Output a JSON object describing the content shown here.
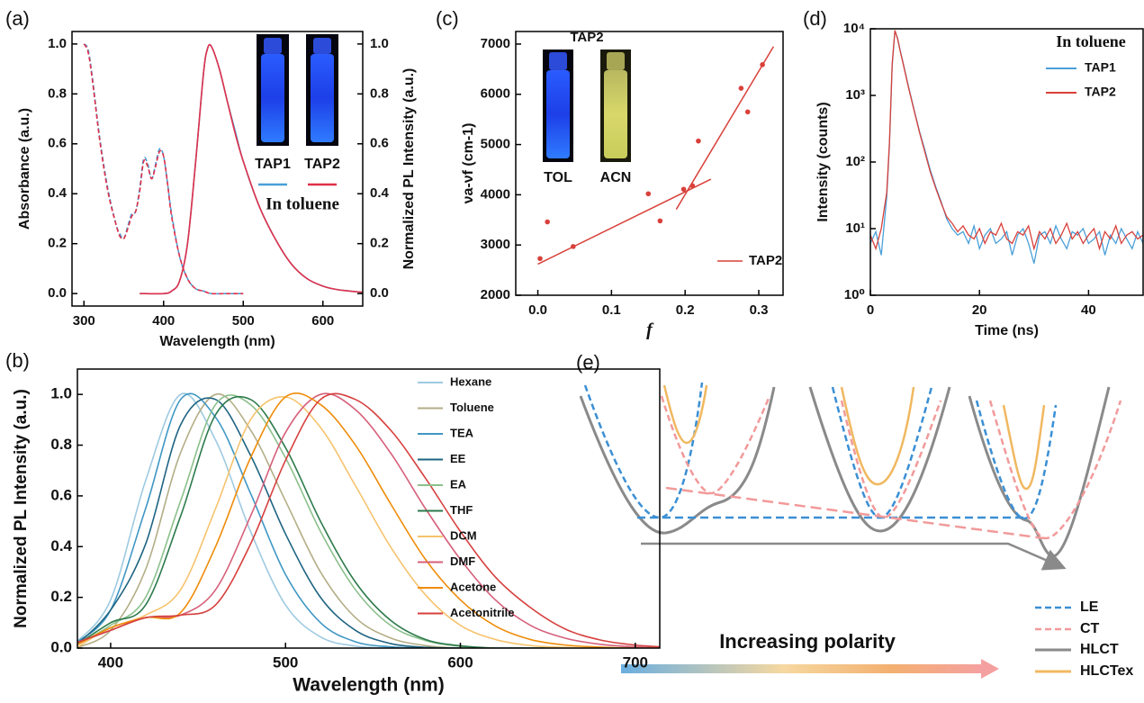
{
  "chart_data": [
    {
      "panel_label": "(a)",
      "type": "line",
      "x_label": "Wavelength (nm)",
      "y_label": "Absorbance (a.u.)",
      "y2_label": "Normalized PL Intensity (a.u.)",
      "annotation": "In toluene",
      "xlim": [
        285,
        650
      ],
      "xticks": [
        300,
        400,
        500,
        600
      ],
      "ylim": [
        -0.05,
        1.05
      ],
      "yticks": [
        {
          "value": 0,
          "label": "0.0"
        },
        0.2,
        0.4,
        0.6,
        0.8,
        {
          "value": 1,
          "label": "1.0"
        }
      ],
      "y2lim": [
        -0.05,
        1.05
      ],
      "y2ticks": [
        {
          "value": 0,
          "label": "0.0"
        },
        0.2,
        0.4,
        0.6,
        0.8,
        {
          "value": 1,
          "label": "1.0"
        }
      ],
      "x_absorbance": [
        300,
        305,
        310,
        320,
        330,
        340,
        345,
        350,
        355,
        360,
        365,
        370,
        375,
        380,
        385,
        390,
        395,
        400,
        405,
        410,
        420,
        430,
        440,
        450,
        460,
        480,
        500
      ],
      "x_pl": [
        370,
        400,
        410,
        420,
        430,
        440,
        450,
        455,
        460,
        470,
        480,
        490,
        500,
        520,
        540,
        560,
        580,
        600,
        620,
        650
      ],
      "series": [
        {
          "name": "TAP1",
          "color": "#4a9fd8",
          "absorbance": [
            1.0,
            0.98,
            0.88,
            0.62,
            0.42,
            0.28,
            0.24,
            0.22,
            0.27,
            0.32,
            0.33,
            0.42,
            0.54,
            0.52,
            0.46,
            0.52,
            0.58,
            0.55,
            0.44,
            0.32,
            0.15,
            0.06,
            0.02,
            0.01,
            0,
            0,
            0
          ],
          "pl": [
            0,
            0,
            0.01,
            0.05,
            0.2,
            0.52,
            0.88,
            0.98,
            0.99,
            0.9,
            0.77,
            0.65,
            0.53,
            0.35,
            0.22,
            0.12,
            0.06,
            0.03,
            0.015,
            0.005
          ]
        },
        {
          "name": "TAP2",
          "color": "#e0304a",
          "absorbance": [
            1.0,
            0.97,
            0.87,
            0.61,
            0.41,
            0.28,
            0.23,
            0.22,
            0.26,
            0.31,
            0.33,
            0.41,
            0.53,
            0.51,
            0.46,
            0.51,
            0.57,
            0.55,
            0.44,
            0.31,
            0.15,
            0.06,
            0.02,
            0.01,
            0,
            0,
            0
          ],
          "pl": [
            0,
            0,
            0.01,
            0.05,
            0.2,
            0.52,
            0.88,
            0.98,
            0.99,
            0.9,
            0.77,
            0.64,
            0.53,
            0.35,
            0.22,
            0.12,
            0.06,
            0.03,
            0.015,
            0.005
          ]
        }
      ]
    },
    {
      "panel_label": "(b)",
      "type": "line",
      "x_label": "Wavelength (nm)",
      "y_label": "Normalized PL Intensity (a.u.)",
      "xlim": [
        381,
        714
      ],
      "xticks": [
        400,
        500,
        600,
        700
      ],
      "ylim": [
        0,
        1.1
      ],
      "yticks": [
        {
          "value": 0,
          "label": "0.0"
        },
        0.2,
        0.4,
        0.6,
        0.8,
        {
          "value": 1,
          "label": "1.0"
        }
      ],
      "x": [
        380,
        400,
        420,
        440,
        460,
        480,
        500,
        520,
        540,
        560,
        580,
        600,
        620,
        640,
        660,
        680,
        700,
        720
      ],
      "series": [
        {
          "name": "Hexane",
          "color": "#9ecae1",
          "values": [
            0.02,
            0.19,
            0.66,
            1.0,
            0.82,
            0.46,
            0.17,
            0.044,
            0.008,
            0.001,
            0,
            0,
            0,
            0,
            0,
            0,
            0,
            0
          ]
        },
        {
          "name": "Toluene",
          "color": "#b3ae86",
          "values": [
            0,
            0.07,
            0.31,
            0.77,
            1.0,
            0.86,
            0.58,
            0.3,
            0.12,
            0.04,
            0.01,
            0,
            0,
            0,
            0,
            0,
            0,
            0
          ]
        },
        {
          "name": "TEA",
          "color": "#3f97c4",
          "values": [
            0.02,
            0.15,
            0.55,
            0.98,
            0.91,
            0.61,
            0.29,
            0.1,
            0.025,
            0.005,
            0,
            0,
            0,
            0,
            0,
            0,
            0,
            0
          ]
        },
        {
          "name": "EE",
          "color": "#1f6482",
          "values": [
            0.01,
            0.15,
            0.41,
            0.88,
            0.98,
            0.76,
            0.45,
            0.2,
            0.07,
            0.018,
            0.003,
            0,
            0,
            0,
            0,
            0,
            0,
            0
          ]
        },
        {
          "name": "EA",
          "color": "#8cc08c",
          "values": [
            0.01,
            0.09,
            0.2,
            0.58,
            0.96,
            0.96,
            0.75,
            0.46,
            0.23,
            0.09,
            0.03,
            0.007,
            0,
            0,
            0,
            0,
            0,
            0
          ]
        },
        {
          "name": "THF",
          "color": "#2d7a4c",
          "values": [
            0.01,
            0.1,
            0.17,
            0.52,
            0.92,
            0.98,
            0.79,
            0.5,
            0.26,
            0.11,
            0.034,
            0.009,
            0,
            0,
            0,
            0,
            0,
            0
          ]
        },
        {
          "name": "DCM",
          "color": "#f6c36e",
          "values": [
            0,
            0.08,
            0.13,
            0.23,
            0.55,
            0.9,
            0.99,
            0.87,
            0.64,
            0.4,
            0.21,
            0.09,
            0.034,
            0.01,
            0.003,
            0,
            0,
            0
          ]
        },
        {
          "name": "DMF",
          "color": "#d6607a",
          "values": [
            0.02,
            0.07,
            0.12,
            0.13,
            0.23,
            0.52,
            0.85,
            1.0,
            0.94,
            0.77,
            0.55,
            0.35,
            0.19,
            0.09,
            0.039,
            0.015,
            0.005,
            0
          ]
        },
        {
          "name": "Acetone",
          "color": "#ef8c0a",
          "values": [
            0.01,
            0.08,
            0.12,
            0.14,
            0.4,
            0.75,
            0.99,
            0.96,
            0.8,
            0.57,
            0.35,
            0.19,
            0.087,
            0.034,
            0.012,
            0.004,
            0,
            0
          ]
        },
        {
          "name": "Acetonitrile",
          "color": "#d6403e",
          "values": [
            0.02,
            0.07,
            0.12,
            0.13,
            0.17,
            0.41,
            0.74,
            0.98,
            0.98,
            0.86,
            0.67,
            0.46,
            0.28,
            0.16,
            0.075,
            0.032,
            0.012,
            0.003
          ]
        }
      ]
    },
    {
      "panel_label": "(c)",
      "type": "scatter",
      "x_label": "f",
      "y_label": "νa-νf (cm-1)",
      "inset_title": "TAP2",
      "inset_labels": [
        "TOL",
        "ACN"
      ],
      "xlim": [
        -0.03,
        0.333
      ],
      "xticks": [
        {
          "value": 0,
          "label": "0.0"
        },
        0.1,
        0.2,
        0.3
      ],
      "ylim": [
        2000,
        7250
      ],
      "yticks": [
        2000,
        3000,
        4000,
        5000,
        6000,
        7000
      ],
      "series": [
        {
          "name": "TAP2",
          "color": "#d9403a",
          "x": [
            0.003,
            0.013,
            0.048,
            0.15,
            0.166,
            0.198,
            0.21,
            0.218,
            0.276,
            0.285,
            0.305
          ],
          "values": [
            2730,
            3460,
            2970,
            4020,
            3480,
            4110,
            4180,
            5070,
            6120,
            5650,
            6590
          ],
          "fits": [
            {
              "x": [
                0,
                0.235
              ],
              "values": [
                2620,
                4310
              ]
            },
            {
              "x": [
                0.188,
                0.32
              ],
              "values": [
                3710,
                6950
              ]
            }
          ]
        }
      ]
    },
    {
      "panel_label": "(d)",
      "type": "line",
      "x_label": "Time (ns)",
      "y_label": "Intensity (counts)",
      "legend_title": "In toluene",
      "log_y": true,
      "xlim": [
        0,
        50
      ],
      "xticks": [
        0,
        20,
        40
      ],
      "ylim": [
        1,
        10000
      ],
      "yticks": [
        {
          "value": 1,
          "label": "10⁰"
        },
        {
          "value": 10,
          "label": "10¹"
        },
        {
          "value": 100,
          "label": "10²"
        },
        {
          "value": 1000,
          "label": "10³"
        },
        {
          "value": 10000,
          "label": "10⁴"
        }
      ],
      "x": [
        0,
        1,
        2,
        3,
        3.5,
        4,
        4.5,
        5,
        5.5,
        6,
        7,
        8,
        9,
        10,
        11,
        12,
        13,
        14,
        15,
        16,
        17,
        18,
        19,
        20,
        21,
        22,
        23,
        24,
        25,
        26,
        27,
        28,
        29,
        30,
        31,
        32,
        33,
        34,
        35,
        36,
        37,
        38,
        39,
        40,
        41,
        42,
        43,
        44,
        45,
        46,
        47,
        48,
        49,
        50
      ],
      "series": [
        {
          "name": "TAP1",
          "color": "#4a9fd8",
          "values": [
            6,
            9,
            4,
            30,
            180,
            2800,
            9300,
            7200,
            4600,
            3100,
            1350,
            620,
            290,
            150,
            75,
            42,
            25,
            14,
            10,
            8,
            9,
            6,
            11,
            5,
            8,
            10,
            6,
            7,
            9,
            4,
            8,
            10,
            6,
            3,
            8,
            9,
            6,
            11,
            7,
            5,
            9,
            8,
            10,
            6,
            7,
            9,
            4,
            8,
            6,
            10,
            7,
            5,
            9,
            6
          ]
        },
        {
          "name": "TAP2",
          "color": "#d9403a",
          "values": [
            8,
            5,
            10,
            35,
            200,
            3000,
            9500,
            7000,
            4500,
            3000,
            1300,
            600,
            280,
            140,
            70,
            40,
            24,
            15,
            12,
            9,
            11,
            8,
            7,
            10,
            6,
            9,
            8,
            12,
            7,
            6,
            9,
            8,
            11,
            5,
            9,
            7,
            10,
            6,
            8,
            12,
            7,
            9,
            6,
            8,
            10,
            5,
            9,
            7,
            11,
            6,
            8,
            9,
            7,
            8
          ]
        }
      ]
    }
  ],
  "schematic": {
    "panel_label": "(e)",
    "arrow_label": "Increasing polarity",
    "legend": [
      "LE",
      "CT",
      "HLCT",
      "HLCTex"
    ]
  }
}
